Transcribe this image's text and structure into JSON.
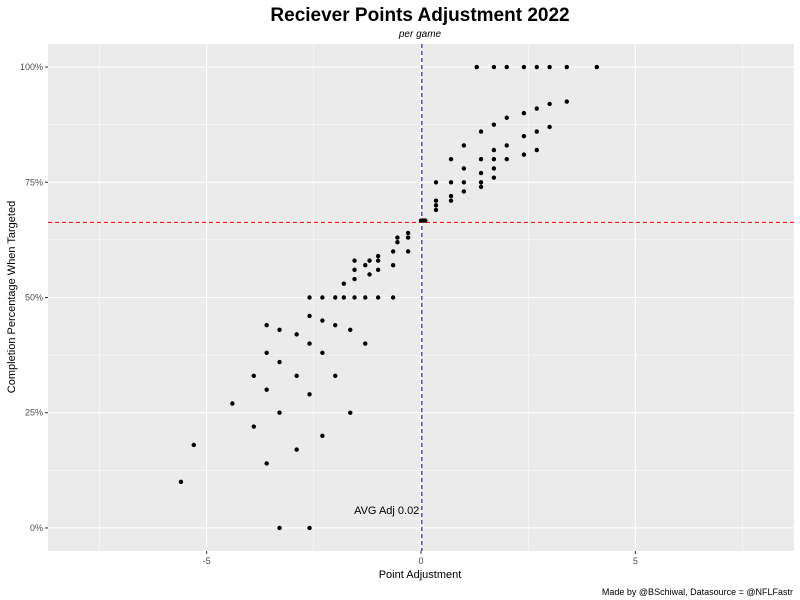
{
  "chart_data": {
    "type": "scatter",
    "title": "Reciever Points Adjustment 2022",
    "subtitle": "per game",
    "xlabel": "Point Adjustment",
    "ylabel": "Completion Percentage When Targeted",
    "caption": "Made by @BSchiwal, Datasource = @NFLFastr",
    "xlim": [
      -8.7,
      8.7
    ],
    "ylim": [
      -0.05,
      1.05
    ],
    "x_ticks": [
      -5,
      0,
      5
    ],
    "x_tick_labels": [
      "-5",
      "0",
      "5"
    ],
    "y_ticks": [
      0,
      0.25,
      0.5,
      0.75,
      1.0
    ],
    "y_tick_labels": [
      "0%",
      "25%",
      "50%",
      "75%",
      "100%"
    ],
    "grid": true,
    "reference_lines": {
      "vertical": {
        "x": 0.02,
        "color": "#00008b",
        "style": "dashed"
      },
      "horizontal": {
        "y": 0.663,
        "color": "#ff0000",
        "style": "dashed"
      }
    },
    "annotations": [
      {
        "text": "AVG Adj 0.02",
        "x": -0.8,
        "y": 0.03
      }
    ],
    "colors": {
      "panel": "#ebebeb",
      "grid": "#ffffff",
      "point": "#000000"
    },
    "points": [
      {
        "x": -5.6,
        "y": 0.1
      },
      {
        "x": -5.3,
        "y": 0.18
      },
      {
        "x": -4.4,
        "y": 0.27
      },
      {
        "x": -3.9,
        "y": 0.33
      },
      {
        "x": -3.9,
        "y": 0.22
      },
      {
        "x": -3.6,
        "y": 0.44
      },
      {
        "x": -3.6,
        "y": 0.38
      },
      {
        "x": -3.6,
        "y": 0.3
      },
      {
        "x": -3.6,
        "y": 0.14
      },
      {
        "x": -3.3,
        "y": 0.43
      },
      {
        "x": -3.3,
        "y": 0.36
      },
      {
        "x": -3.3,
        "y": 0.25
      },
      {
        "x": -3.3,
        "y": 0.0
      },
      {
        "x": -2.9,
        "y": 0.42
      },
      {
        "x": -2.9,
        "y": 0.33
      },
      {
        "x": -2.9,
        "y": 0.17
      },
      {
        "x": -2.6,
        "y": 0.5
      },
      {
        "x": -2.6,
        "y": 0.46
      },
      {
        "x": -2.6,
        "y": 0.4
      },
      {
        "x": -2.6,
        "y": 0.29
      },
      {
        "x": -2.6,
        "y": 0.0
      },
      {
        "x": -2.3,
        "y": 0.5
      },
      {
        "x": -2.3,
        "y": 0.45
      },
      {
        "x": -2.3,
        "y": 0.38
      },
      {
        "x": -2.3,
        "y": 0.2
      },
      {
        "x": -2.0,
        "y": 0.5
      },
      {
        "x": -2.0,
        "y": 0.44
      },
      {
        "x": -2.0,
        "y": 0.33
      },
      {
        "x": -1.8,
        "y": 0.53
      },
      {
        "x": -1.8,
        "y": 0.5
      },
      {
        "x": -1.65,
        "y": 0.43
      },
      {
        "x": -1.65,
        "y": 0.25
      },
      {
        "x": -1.55,
        "y": 0.58
      },
      {
        "x": -1.55,
        "y": 0.56
      },
      {
        "x": -1.55,
        "y": 0.54
      },
      {
        "x": -1.55,
        "y": 0.5
      },
      {
        "x": -1.3,
        "y": 0.57
      },
      {
        "x": -1.3,
        "y": 0.5
      },
      {
        "x": -1.3,
        "y": 0.4
      },
      {
        "x": -1.2,
        "y": 0.58
      },
      {
        "x": -1.2,
        "y": 0.55
      },
      {
        "x": -1.0,
        "y": 0.59
      },
      {
        "x": -1.0,
        "y": 0.58
      },
      {
        "x": -1.0,
        "y": 0.56
      },
      {
        "x": -1.0,
        "y": 0.5
      },
      {
        "x": -0.65,
        "y": 0.6
      },
      {
        "x": -0.65,
        "y": 0.57
      },
      {
        "x": -0.65,
        "y": 0.5
      },
      {
        "x": -0.55,
        "y": 0.63
      },
      {
        "x": -0.55,
        "y": 0.62
      },
      {
        "x": -0.3,
        "y": 0.64
      },
      {
        "x": -0.3,
        "y": 0.63
      },
      {
        "x": -0.3,
        "y": 0.6
      },
      {
        "x": 0.0,
        "y": 0.667
      },
      {
        "x": 0.05,
        "y": 0.667
      },
      {
        "x": 0.1,
        "y": 0.667
      },
      {
        "x": 0.35,
        "y": 0.75
      },
      {
        "x": 0.35,
        "y": 0.71
      },
      {
        "x": 0.35,
        "y": 0.7
      },
      {
        "x": 0.35,
        "y": 0.69
      },
      {
        "x": 0.7,
        "y": 0.8
      },
      {
        "x": 0.7,
        "y": 0.75
      },
      {
        "x": 0.7,
        "y": 0.72
      },
      {
        "x": 0.7,
        "y": 0.71
      },
      {
        "x": 1.0,
        "y": 0.83
      },
      {
        "x": 1.0,
        "y": 0.78
      },
      {
        "x": 1.0,
        "y": 0.75
      },
      {
        "x": 1.0,
        "y": 0.73
      },
      {
        "x": 1.3,
        "y": 1.0
      },
      {
        "x": 1.4,
        "y": 0.86
      },
      {
        "x": 1.4,
        "y": 0.8
      },
      {
        "x": 1.4,
        "y": 0.77
      },
      {
        "x": 1.4,
        "y": 0.75
      },
      {
        "x": 1.4,
        "y": 0.74
      },
      {
        "x": 1.7,
        "y": 1.0
      },
      {
        "x": 1.7,
        "y": 0.875
      },
      {
        "x": 1.7,
        "y": 0.82
      },
      {
        "x": 1.7,
        "y": 0.8
      },
      {
        "x": 1.7,
        "y": 0.78
      },
      {
        "x": 1.7,
        "y": 0.76
      },
      {
        "x": 2.0,
        "y": 1.0
      },
      {
        "x": 2.0,
        "y": 0.89
      },
      {
        "x": 2.0,
        "y": 0.83
      },
      {
        "x": 2.0,
        "y": 0.8
      },
      {
        "x": 2.4,
        "y": 1.0
      },
      {
        "x": 2.4,
        "y": 0.9
      },
      {
        "x": 2.4,
        "y": 0.85
      },
      {
        "x": 2.4,
        "y": 0.81
      },
      {
        "x": 2.7,
        "y": 1.0
      },
      {
        "x": 2.7,
        "y": 0.91
      },
      {
        "x": 2.7,
        "y": 0.86
      },
      {
        "x": 2.7,
        "y": 0.82
      },
      {
        "x": 3.0,
        "y": 1.0
      },
      {
        "x": 3.0,
        "y": 0.92
      },
      {
        "x": 3.0,
        "y": 0.87
      },
      {
        "x": 3.4,
        "y": 1.0
      },
      {
        "x": 3.4,
        "y": 0.925
      },
      {
        "x": 4.1,
        "y": 1.0
      }
    ]
  }
}
